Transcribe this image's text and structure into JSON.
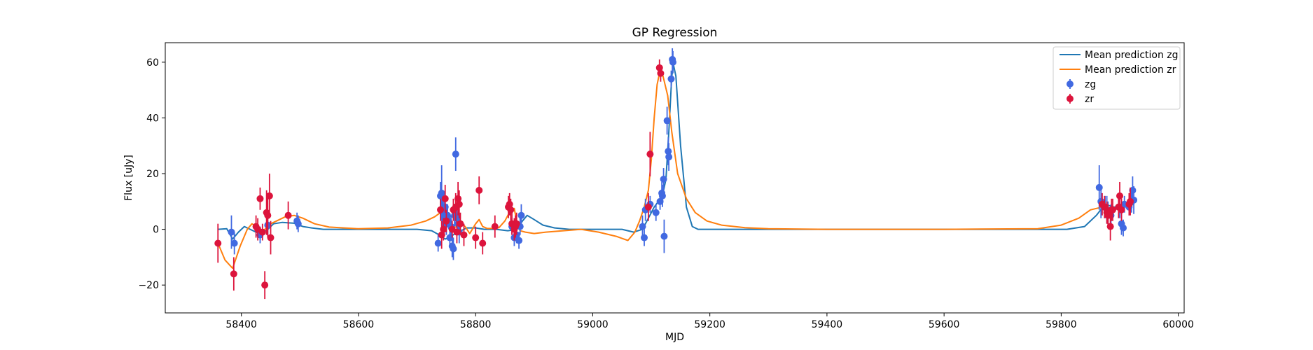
{
  "chart_data": {
    "type": "scatter",
    "title": "GP Regression",
    "xlabel": "MJD",
    "ylabel": "Flux [uJy]",
    "xlim": [
      58270,
      60010
    ],
    "ylim": [
      -30,
      67
    ],
    "xticks": [
      58400,
      58600,
      58800,
      59000,
      59200,
      59400,
      59600,
      59800,
      60000
    ],
    "yticks": [
      -20,
      0,
      20,
      40,
      60
    ],
    "grid": false,
    "legend_position": "top-right",
    "legend": [
      "Mean prediction zg",
      "Mean prediction zr",
      "zg",
      "zr"
    ],
    "series": [
      {
        "name": "Mean prediction zg",
        "kind": "line",
        "color": "#1f77b4",
        "points": [
          [
            58360,
            0
          ],
          [
            58375,
            0.2
          ],
          [
            58385,
            -3.5
          ],
          [
            58395,
            -1
          ],
          [
            58405,
            1
          ],
          [
            58415,
            0
          ],
          [
            58425,
            -1
          ],
          [
            58435,
            -1.5
          ],
          [
            58445,
            0
          ],
          [
            58455,
            2
          ],
          [
            58470,
            2.5
          ],
          [
            58490,
            2.2
          ],
          [
            58505,
            1
          ],
          [
            58520,
            0.5
          ],
          [
            58540,
            0
          ],
          [
            58560,
            0
          ],
          [
            58600,
            0
          ],
          [
            58660,
            0
          ],
          [
            58700,
            0
          ],
          [
            58725,
            -0.5
          ],
          [
            58738,
            -2
          ],
          [
            58748,
            -3.5
          ],
          [
            58755,
            -3
          ],
          [
            58765,
            -1.5
          ],
          [
            58775,
            -0.5
          ],
          [
            58785,
            0.5
          ],
          [
            58800,
            0.5
          ],
          [
            58815,
            0
          ],
          [
            58835,
            0
          ],
          [
            58855,
            -0.5
          ],
          [
            58870,
            0
          ],
          [
            58880,
            3
          ],
          [
            58888,
            5
          ],
          [
            58900,
            3.5
          ],
          [
            58915,
            1.5
          ],
          [
            58935,
            0.5
          ],
          [
            58960,
            0
          ],
          [
            59000,
            0
          ],
          [
            59050,
            0
          ],
          [
            59070,
            -1
          ],
          [
            59085,
            0
          ],
          [
            59095,
            4
          ],
          [
            59105,
            8
          ],
          [
            59112,
            10
          ],
          [
            59118,
            11
          ],
          [
            59125,
            18
          ],
          [
            59130,
            35
          ],
          [
            59135,
            55
          ],
          [
            59138,
            59
          ],
          [
            59142,
            55
          ],
          [
            59150,
            30
          ],
          [
            59160,
            8
          ],
          [
            59170,
            1
          ],
          [
            59180,
            0
          ],
          [
            59220,
            0
          ],
          [
            59400,
            0
          ],
          [
            59600,
            0
          ],
          [
            59750,
            0
          ],
          [
            59810,
            0
          ],
          [
            59840,
            1
          ],
          [
            59860,
            5
          ],
          [
            59875,
            9
          ],
          [
            59890,
            8
          ],
          [
            59905,
            8
          ],
          [
            59915,
            8.5
          ],
          [
            59925,
            9
          ]
        ]
      },
      {
        "name": "Mean prediction zr",
        "kind": "line",
        "color": "#ff7f0e",
        "points": [
          [
            58360,
            -5
          ],
          [
            58372,
            -11
          ],
          [
            58385,
            -14
          ],
          [
            58398,
            -6
          ],
          [
            58410,
            0
          ],
          [
            58418,
            2
          ],
          [
            58425,
            1
          ],
          [
            58432,
            -2
          ],
          [
            58440,
            0
          ],
          [
            58450,
            2
          ],
          [
            58460,
            3
          ],
          [
            58475,
            4.5
          ],
          [
            58490,
            5
          ],
          [
            58505,
            4
          ],
          [
            58525,
            2
          ],
          [
            58550,
            0.8
          ],
          [
            58600,
            0.2
          ],
          [
            58650,
            0.5
          ],
          [
            58690,
            1.5
          ],
          [
            58715,
            3
          ],
          [
            58730,
            4.5
          ],
          [
            58740,
            6
          ],
          [
            58748,
            5
          ],
          [
            58755,
            2.5
          ],
          [
            58762,
            0.5
          ],
          [
            58768,
            1
          ],
          [
            58775,
            2.5
          ],
          [
            58782,
            1
          ],
          [
            58790,
            -1.5
          ],
          [
            58800,
            2
          ],
          [
            58806,
            3.5
          ],
          [
            58812,
            1
          ],
          [
            58820,
            0.3
          ],
          [
            58830,
            0.3
          ],
          [
            58840,
            0.6
          ],
          [
            58850,
            3
          ],
          [
            58860,
            7
          ],
          [
            58866,
            7.5
          ],
          [
            58870,
            3
          ],
          [
            58876,
            -0.5
          ],
          [
            58885,
            -1
          ],
          [
            58900,
            -1.5
          ],
          [
            58920,
            -1
          ],
          [
            58950,
            -0.5
          ],
          [
            58980,
            0
          ],
          [
            59010,
            -1
          ],
          [
            59040,
            -2.5
          ],
          [
            59060,
            -4
          ],
          [
            59072,
            -1
          ],
          [
            59080,
            3
          ],
          [
            59088,
            8
          ],
          [
            59095,
            14
          ],
          [
            59100,
            25
          ],
          [
            59105,
            40
          ],
          [
            59110,
            52
          ],
          [
            59115,
            57
          ],
          [
            59120,
            55
          ],
          [
            59128,
            48
          ],
          [
            59135,
            35
          ],
          [
            59145,
            20
          ],
          [
            59160,
            11
          ],
          [
            59175,
            6
          ],
          [
            59195,
            3
          ],
          [
            59220,
            1.5
          ],
          [
            59260,
            0.6
          ],
          [
            59300,
            0.2
          ],
          [
            59400,
            0
          ],
          [
            59600,
            0
          ],
          [
            59760,
            0.2
          ],
          [
            59800,
            1.5
          ],
          [
            59830,
            4
          ],
          [
            59850,
            7
          ],
          [
            59870,
            8
          ],
          [
            59885,
            7
          ],
          [
            59900,
            8
          ],
          [
            59915,
            9
          ],
          [
            59925,
            9
          ]
        ]
      },
      {
        "name": "zg",
        "kind": "errorbar",
        "color": "#4169e1",
        "points": [
          [
            58383,
            -1,
            6
          ],
          [
            58388,
            -5,
            4
          ],
          [
            58432,
            -2,
            3
          ],
          [
            58445,
            1.5,
            4
          ],
          [
            58495,
            3,
            3
          ],
          [
            58497,
            2,
            3
          ],
          [
            58736,
            -5,
            3
          ],
          [
            58740,
            12,
            5
          ],
          [
            58742,
            13,
            10
          ],
          [
            58744,
            6,
            8
          ],
          [
            58746,
            4,
            6
          ],
          [
            58748,
            8,
            4
          ],
          [
            58750,
            2,
            4
          ],
          [
            58752,
            5,
            4
          ],
          [
            58754,
            3,
            3
          ],
          [
            58756,
            -3,
            3
          ],
          [
            58758,
            1,
            4
          ],
          [
            58760,
            -6,
            4
          ],
          [
            58762,
            -7,
            4
          ],
          [
            58764,
            5,
            4
          ],
          [
            58766,
            27,
            6
          ],
          [
            58768,
            4,
            4
          ],
          [
            58770,
            2,
            4
          ],
          [
            58772,
            -1,
            4
          ],
          [
            58862,
            1,
            3
          ],
          [
            58866,
            -3,
            3
          ],
          [
            58870,
            -2,
            3
          ],
          [
            58874,
            -4,
            3
          ],
          [
            58876,
            1,
            3
          ],
          [
            58878,
            5,
            4
          ],
          [
            59085,
            1,
            4
          ],
          [
            59088,
            -3,
            3
          ],
          [
            59090,
            7,
            4
          ],
          [
            59098,
            9,
            3
          ],
          [
            59108,
            6,
            3
          ],
          [
            59115,
            10,
            3
          ],
          [
            59118,
            13,
            4
          ],
          [
            59119,
            12,
            4
          ],
          [
            59121,
            18,
            4
          ],
          [
            59122,
            -2.5,
            6
          ],
          [
            59127,
            39,
            5
          ],
          [
            59129,
            28,
            5
          ],
          [
            59130,
            26,
            5
          ],
          [
            59134,
            54,
            3
          ],
          [
            59136,
            61,
            4
          ],
          [
            59137,
            60,
            4
          ],
          [
            59865,
            15,
            8
          ],
          [
            59868,
            10,
            6
          ],
          [
            59875,
            8,
            4
          ],
          [
            59878,
            7,
            5
          ],
          [
            59880,
            6,
            4
          ],
          [
            59885,
            5,
            4
          ],
          [
            59900,
            8,
            4
          ],
          [
            59903,
            2,
            4
          ],
          [
            59906,
            0.5,
            3
          ],
          [
            59908,
            9,
            3
          ],
          [
            59916,
            8,
            3
          ],
          [
            59920,
            10,
            4
          ],
          [
            59922,
            14,
            5
          ],
          [
            59924,
            10.5,
            5
          ]
        ]
      },
      {
        "name": "zr",
        "kind": "errorbar",
        "color": "#dc143c",
        "points": [
          [
            58360,
            -5,
            7
          ],
          [
            58387,
            -16,
            6
          ],
          [
            58425,
            1,
            4
          ],
          [
            58428,
            0,
            4
          ],
          [
            58432,
            11,
            4
          ],
          [
            58436,
            -1,
            3
          ],
          [
            58440,
            -20,
            5
          ],
          [
            58443,
            6,
            8
          ],
          [
            58445,
            5,
            8
          ],
          [
            58448,
            12,
            8
          ],
          [
            58450,
            -3,
            6
          ],
          [
            58480,
            5,
            5
          ],
          [
            58740,
            7,
            4
          ],
          [
            58742,
            -2,
            5
          ],
          [
            58745,
            0,
            4
          ],
          [
            58748,
            11,
            5
          ],
          [
            58750,
            3,
            4
          ],
          [
            58760,
            0,
            3
          ],
          [
            58762,
            7,
            4
          ],
          [
            58766,
            8,
            5
          ],
          [
            58768,
            -1,
            4
          ],
          [
            58770,
            11,
            6
          ],
          [
            58772,
            9,
            5
          ],
          [
            58774,
            2,
            4
          ],
          [
            58780,
            -2,
            4
          ],
          [
            58800,
            -3,
            4
          ],
          [
            58806,
            14,
            5
          ],
          [
            58812,
            -5,
            4
          ],
          [
            58833,
            1,
            4
          ],
          [
            58856,
            8,
            4
          ],
          [
            58858,
            9,
            4
          ],
          [
            58860,
            7,
            4
          ],
          [
            58862,
            2,
            4
          ],
          [
            58866,
            0,
            4
          ],
          [
            58868,
            1,
            4
          ],
          [
            58870,
            2,
            4
          ],
          [
            59095,
            8,
            5
          ],
          [
            59098,
            27,
            8
          ],
          [
            59114,
            58,
            3
          ],
          [
            59116,
            56,
            3
          ],
          [
            59870,
            9,
            4
          ],
          [
            59874,
            8,
            4
          ],
          [
            59878,
            6,
            4
          ],
          [
            59880,
            5,
            4
          ],
          [
            59884,
            1,
            5
          ],
          [
            59886,
            7,
            4
          ],
          [
            59888,
            7,
            4
          ],
          [
            59898,
            8,
            4
          ],
          [
            59900,
            12,
            5
          ],
          [
            59903,
            7,
            4
          ],
          [
            59916,
            9,
            4
          ],
          [
            59918,
            10,
            5
          ]
        ]
      }
    ]
  }
}
